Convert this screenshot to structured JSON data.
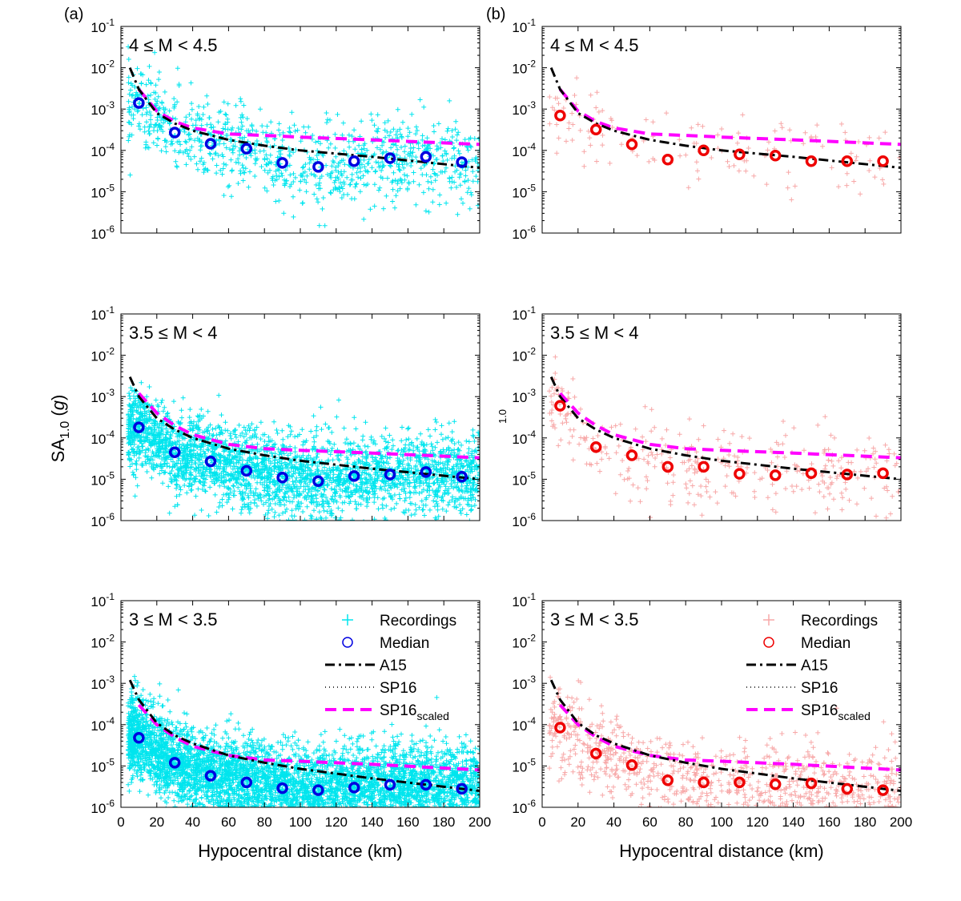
{
  "figure": {
    "panel_labels": [
      "(a)",
      "(b)"
    ],
    "ylabel_main": "SA",
    "ylabel_sub": "1.0",
    "ylabel_unit_open": " (",
    "ylabel_unit": "g",
    "ylabel_unit_close": ")",
    "stray_text": "1.0",
    "xlabel": "Hypocentral distance (km)"
  },
  "colors": {
    "recordings_a": "#00e5ee",
    "recordings_b": "#f7a8a8",
    "median_a": "#0000e0",
    "median_b": "#ee0000",
    "a15": "#000000",
    "sp16": "#000000",
    "sp16_scaled": "#ff00ff"
  },
  "legend": {
    "recordings": "Recordings",
    "median": "Median",
    "a15": "A15",
    "sp16": "SP16",
    "sp16_scaled_main": "SP16",
    "sp16_scaled_sub": "scaled"
  },
  "chart_data": [
    {
      "type": "scatter",
      "panel": "a",
      "title": "4 ≤ M < 4.5",
      "x_ticks": [],
      "xlim": [
        0,
        200
      ],
      "ylim": [
        1e-06,
        0.1
      ],
      "y_scale": "log",
      "y_ticks": [
        "10-6",
        "10-5",
        "10-4",
        "10-3",
        "10-2",
        "10-1"
      ],
      "median": {
        "x": [
          10,
          30,
          50,
          70,
          90,
          110,
          130,
          150,
          170,
          190
        ],
        "y": [
          0.0014,
          0.00027,
          0.000145,
          0.00011,
          5e-05,
          4e-05,
          5.5e-05,
          6.5e-05,
          7e-05,
          5.2e-05
        ]
      },
      "a15": {
        "x": [
          5,
          10,
          20,
          30,
          40,
          60,
          80,
          100,
          140,
          200
        ],
        "y": [
          0.01,
          0.003,
          0.0008,
          0.00045,
          0.0003,
          0.00018,
          0.00013,
          0.0001,
          7e-05,
          3.8e-05
        ]
      },
      "sp16_scaled": {
        "x": [
          10,
          20,
          30,
          40,
          60,
          80,
          100,
          140,
          200
        ],
        "y": [
          0.003,
          0.0009,
          0.0005,
          0.00035,
          0.00025,
          0.00023,
          0.00021,
          0.00018,
          0.00014
        ]
      },
      "recordings_count": 1000
    },
    {
      "type": "scatter",
      "panel": "b",
      "title": "4 ≤ M < 4.5",
      "x_ticks": [],
      "xlim": [
        0,
        200
      ],
      "ylim": [
        1e-06,
        0.1
      ],
      "y_scale": "log",
      "y_ticks": [
        "10-6",
        "10-5",
        "10-4",
        "10-3",
        "10-2",
        "10-1"
      ],
      "median": {
        "x": [
          10,
          30,
          50,
          70,
          90,
          110,
          130,
          150,
          170,
          190
        ],
        "y": [
          0.0007,
          0.00032,
          0.00014,
          6e-05,
          0.0001,
          8e-05,
          7.5e-05,
          5.5e-05,
          5.5e-05,
          5.5e-05
        ]
      },
      "a15": {
        "x": [
          5,
          10,
          20,
          30,
          40,
          60,
          80,
          100,
          140,
          200
        ],
        "y": [
          0.01,
          0.003,
          0.0008,
          0.00045,
          0.0003,
          0.00018,
          0.00013,
          0.0001,
          7e-05,
          3.8e-05
        ]
      },
      "sp16_scaled": {
        "x": [
          10,
          20,
          30,
          40,
          60,
          80,
          100,
          140,
          200
        ],
        "y": [
          0.003,
          0.0009,
          0.0005,
          0.00035,
          0.00025,
          0.00023,
          0.00021,
          0.00018,
          0.00014
        ]
      },
      "recordings_count": 140
    },
    {
      "type": "scatter",
      "panel": "a",
      "title": "3.5 ≤ M < 4",
      "x_ticks": [],
      "xlim": [
        0,
        200
      ],
      "ylim": [
        1e-06,
        0.1
      ],
      "y_scale": "log",
      "y_ticks": [
        "10-6",
        "10-5",
        "10-4",
        "10-3",
        "10-2",
        "10-1"
      ],
      "median": {
        "x": [
          10,
          30,
          50,
          70,
          90,
          110,
          130,
          150,
          170,
          190
        ],
        "y": [
          0.00018,
          4.5e-05,
          2.7e-05,
          1.6e-05,
          1.1e-05,
          9e-06,
          1.2e-05,
          1.3e-05,
          1.5e-05,
          1.15e-05
        ]
      },
      "a15": {
        "x": [
          5,
          10,
          20,
          30,
          40,
          60,
          80,
          100,
          140,
          200
        ],
        "y": [
          0.003,
          0.001,
          0.0003,
          0.00016,
          0.0001,
          5.5e-05,
          3.8e-05,
          2.8e-05,
          1.8e-05,
          1e-05
        ]
      },
      "sp16_scaled": {
        "x": [
          10,
          20,
          30,
          40,
          60,
          80,
          100,
          140,
          200
        ],
        "y": [
          0.0012,
          0.0004,
          0.0002,
          0.00012,
          7e-05,
          5.5e-05,
          5e-05,
          4.3e-05,
          3.3e-05
        ]
      },
      "recordings_count": 3000
    },
    {
      "type": "scatter",
      "panel": "b",
      "title": "3.5 ≤ M < 4",
      "x_ticks": [],
      "xlim": [
        0,
        200
      ],
      "ylim": [
        1e-06,
        0.1
      ],
      "y_scale": "log",
      "y_ticks": [
        "10-6",
        "10-5",
        "10-4",
        "10-3",
        "10-2",
        "10-1"
      ],
      "median": {
        "x": [
          10,
          30,
          50,
          70,
          90,
          110,
          130,
          150,
          170,
          190
        ],
        "y": [
          0.0006,
          6e-05,
          3.8e-05,
          2e-05,
          2e-05,
          1.35e-05,
          1.25e-05,
          1.4e-05,
          1.3e-05,
          1.4e-05
        ]
      },
      "a15": {
        "x": [
          5,
          10,
          20,
          30,
          40,
          60,
          80,
          100,
          140,
          200
        ],
        "y": [
          0.003,
          0.001,
          0.0003,
          0.00016,
          0.0001,
          5.5e-05,
          3.8e-05,
          2.8e-05,
          1.8e-05,
          1e-05
        ]
      },
      "sp16_scaled": {
        "x": [
          10,
          20,
          30,
          40,
          60,
          80,
          100,
          140,
          200
        ],
        "y": [
          0.0012,
          0.0004,
          0.0002,
          0.00012,
          7e-05,
          5.5e-05,
          5e-05,
          4.3e-05,
          3.3e-05
        ]
      },
      "recordings_count": 350
    },
    {
      "type": "scatter",
      "panel": "a",
      "title": "3 ≤ M < 3.5",
      "x_ticks": [
        "0",
        "20",
        "40",
        "60",
        "80",
        "100",
        "120",
        "140",
        "160",
        "180",
        "200"
      ],
      "xlim": [
        0,
        200
      ],
      "ylim": [
        1e-06,
        0.1
      ],
      "y_scale": "log",
      "y_ticks": [
        "10-6",
        "10-5",
        "10-4",
        "10-3",
        "10-2",
        "10-1"
      ],
      "median": {
        "x": [
          10,
          30,
          50,
          70,
          90,
          110,
          130,
          150,
          170,
          190
        ],
        "y": [
          4.8e-05,
          1.2e-05,
          5.8e-06,
          4e-06,
          2.9e-06,
          2.6e-06,
          3e-06,
          3.5e-06,
          3.5e-06,
          2.8e-06
        ]
      },
      "a15": {
        "x": [
          5,
          10,
          20,
          30,
          40,
          60,
          80,
          100,
          140,
          200
        ],
        "y": [
          0.0012,
          0.0004,
          0.00011,
          5.5e-05,
          3.5e-05,
          1.8e-05,
          1.2e-05,
          8.5e-06,
          5e-06,
          2.5e-06
        ]
      },
      "sp16_scaled": {
        "x": [
          10,
          20,
          30,
          40,
          60,
          80,
          100,
          140,
          200
        ],
        "y": [
          0.0003,
          0.0001,
          5e-05,
          3e-05,
          1.8e-05,
          1.4e-05,
          1.3e-05,
          1.1e-05,
          8e-06
        ]
      },
      "recordings_count": 5000
    },
    {
      "type": "scatter",
      "panel": "b",
      "title": "3 ≤ M < 3.5",
      "x_ticks": [
        "0",
        "20",
        "40",
        "60",
        "80",
        "100",
        "120",
        "140",
        "160",
        "180",
        "200"
      ],
      "xlim": [
        0,
        200
      ],
      "ylim": [
        1e-06,
        0.1
      ],
      "y_scale": "log",
      "y_ticks": [
        "10-6",
        "10-5",
        "10-4",
        "10-3",
        "10-2",
        "10-1"
      ],
      "median": {
        "x": [
          10,
          30,
          50,
          70,
          90,
          110,
          130,
          150,
          170,
          190
        ],
        "y": [
          8.5e-05,
          2e-05,
          1.05e-05,
          4.5e-06,
          4e-06,
          4e-06,
          3.6e-06,
          3.8e-06,
          2.8e-06,
          2.6e-06
        ]
      },
      "a15": {
        "x": [
          5,
          10,
          20,
          30,
          40,
          60,
          80,
          100,
          140,
          200
        ],
        "y": [
          0.0012,
          0.0004,
          0.00011,
          5.5e-05,
          3.5e-05,
          1.8e-05,
          1.2e-05,
          8.5e-06,
          5e-06,
          2.5e-06
        ]
      },
      "sp16_scaled": {
        "x": [
          10,
          20,
          30,
          40,
          60,
          80,
          100,
          140,
          200
        ],
        "y": [
          0.0003,
          0.0001,
          5e-05,
          3e-05,
          1.8e-05,
          1.4e-05,
          1.3e-05,
          1.1e-05,
          8e-06
        ]
      },
      "recordings_count": 900
    }
  ]
}
